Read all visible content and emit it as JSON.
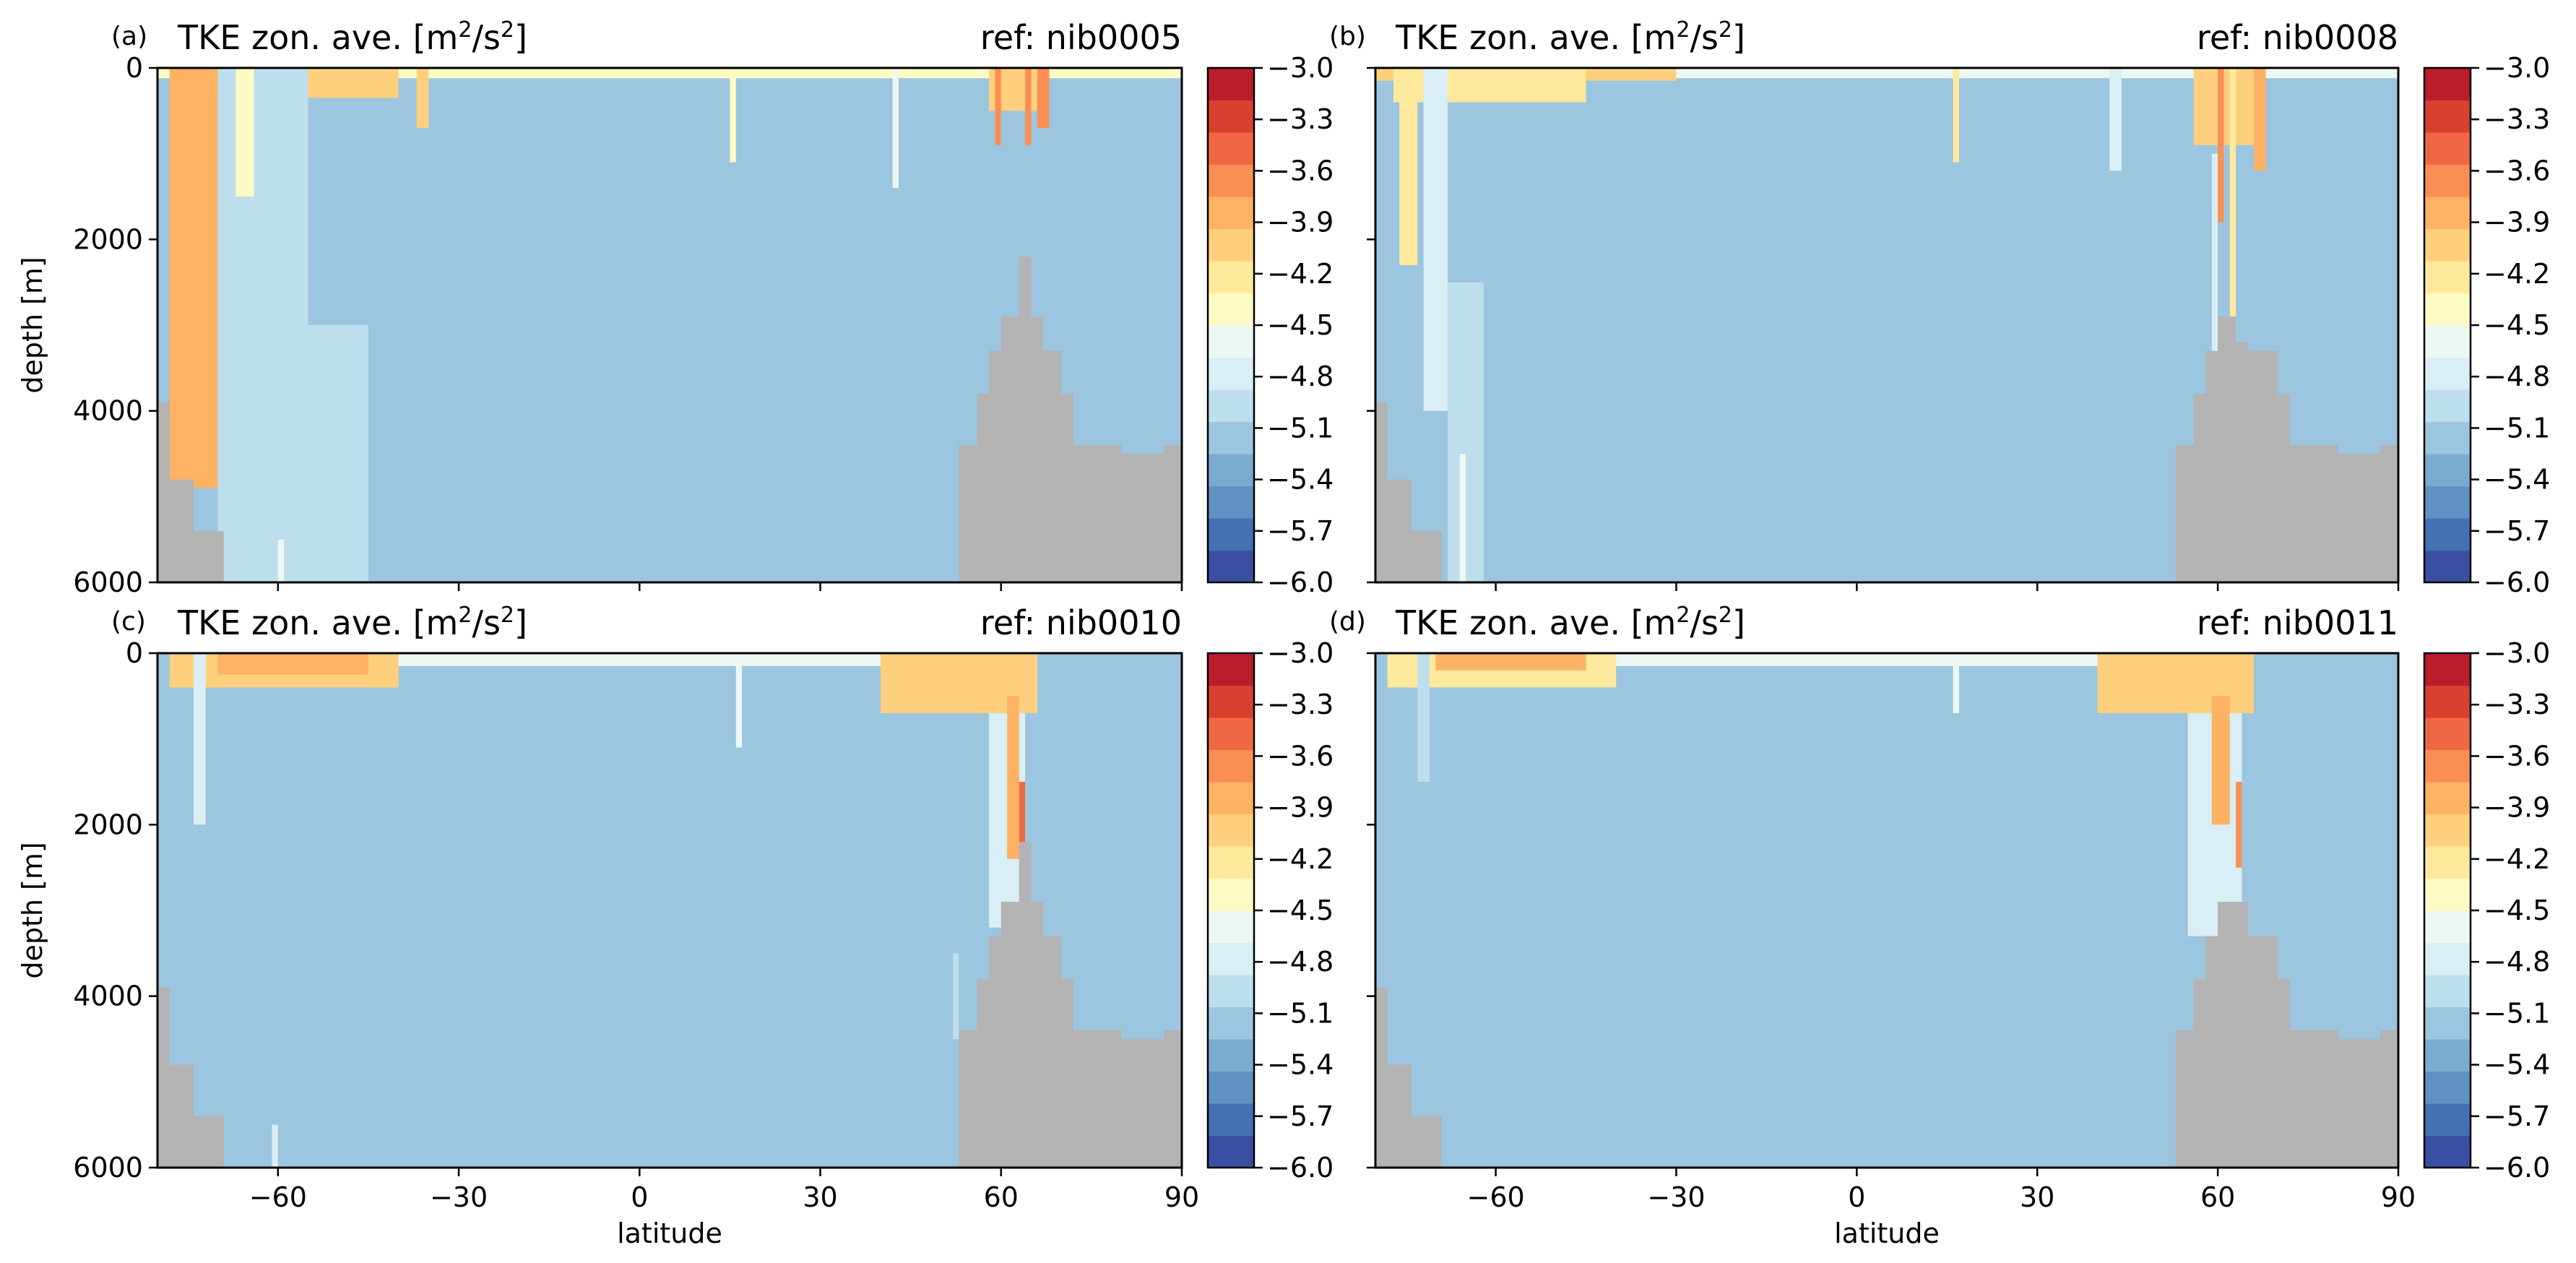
{
  "colors": {
    "land": "#b3b3b3",
    "background": "#8fbcd9",
    "palette": [
      "#3a4fa1",
      "#4470b4",
      "#5f91c2",
      "#7aabd0",
      "#9cc5df",
      "#bddeec",
      "#daeef5",
      "#eef8f3",
      "#fefcc4",
      "#fee99d",
      "#fed07e",
      "#fdb264",
      "#fa8f53",
      "#f06843",
      "#da4030",
      "#bb1d2b"
    ]
  },
  "chart_data": [
    {
      "type": "heatmap",
      "panel_label": "(a)",
      "title": "TKE zon. ave. [m²/s²]",
      "ref": "ref: nib0005",
      "xlabel": "",
      "ylabel": "depth [m]",
      "xlim": [
        -80,
        90
      ],
      "ylim": [
        6000,
        0
      ],
      "xticks": [
        -60,
        -30,
        0,
        30,
        60,
        90
      ],
      "yticks": [
        0,
        2000,
        4000,
        6000
      ],
      "show_xtick_labels": false,
      "colorbar": {
        "min": -6.0,
        "max": -3.0,
        "ticks": [
          "-3.0",
          "-3.3",
          "-3.6",
          "-3.9",
          "-4.2",
          "-4.5",
          "-4.8",
          "-5.1",
          "-5.4",
          "-5.7",
          "-6.0"
        ]
      },
      "background_level": -5.2,
      "land_polygon": [
        [
          -80,
          6000
        ],
        [
          -80,
          3900
        ],
        [
          -78,
          3900
        ],
        [
          -78,
          4800
        ],
        [
          -74,
          4800
        ],
        [
          -74,
          5400
        ],
        [
          -69,
          5400
        ],
        [
          -69,
          6000
        ],
        [
          53,
          6000
        ],
        [
          53,
          4400
        ],
        [
          56,
          4400
        ],
        [
          56,
          3800
        ],
        [
          58,
          3800
        ],
        [
          58,
          3300
        ],
        [
          60,
          3300
        ],
        [
          60,
          2900
        ],
        [
          63,
          2900
        ],
        [
          63,
          2200
        ],
        [
          65,
          2200
        ],
        [
          65,
          2900
        ],
        [
          67,
          2900
        ],
        [
          67,
          3300
        ],
        [
          70,
          3300
        ],
        [
          70,
          3800
        ],
        [
          72,
          3800
        ],
        [
          72,
          4400
        ],
        [
          76,
          4400
        ],
        [
          76,
          4400
        ],
        [
          80,
          4400
        ],
        [
          80,
          4500
        ],
        [
          87,
          4500
        ],
        [
          87,
          4400
        ],
        [
          90,
          4400
        ],
        [
          90,
          6000
        ]
      ],
      "bands": [
        {
          "x0": -80,
          "x1": -30,
          "d0": 0,
          "d1": 120,
          "v": -4.4
        },
        {
          "x0": -73,
          "x1": -40,
          "d0": 0,
          "d1": 350,
          "v": -4.1
        },
        {
          "x0": -30,
          "x1": 90,
          "d0": 0,
          "d1": 120,
          "v": -4.5
        },
        {
          "x0": -78,
          "x1": -70,
          "d0": 0,
          "d1": 4900,
          "v": -3.9
        },
        {
          "x0": -75,
          "x1": -71,
          "d0": 0,
          "d1": 2400,
          "v": -3.8
        },
        {
          "x0": -70,
          "x1": -64,
          "d0": 0,
          "d1": 6000,
          "v": -4.9
        },
        {
          "x0": -67,
          "x1": -63,
          "d0": 0,
          "d1": 1500,
          "v": -4.4
        },
        {
          "x0": -64,
          "x1": -55,
          "d0": 0,
          "d1": 6000,
          "v": -5.0
        },
        {
          "x0": -55,
          "x1": -45,
          "d0": 3000,
          "d1": 6000,
          "v": -5.0
        },
        {
          "x0": -60,
          "x1": -59,
          "d0": 5500,
          "d1": 6000,
          "v": -4.6
        },
        {
          "x0": -37,
          "x1": -35,
          "d0": 0,
          "d1": 700,
          "v": -4.0
        },
        {
          "x0": 15,
          "x1": 16,
          "d0": 0,
          "d1": 1100,
          "v": -4.4
        },
        {
          "x0": 42,
          "x1": 43,
          "d0": 0,
          "d1": 1400,
          "v": -4.6
        },
        {
          "x0": 58,
          "x1": 66,
          "d0": 0,
          "d1": 500,
          "v": -4.0
        },
        {
          "x0": 59,
          "x1": 60,
          "d0": 0,
          "d1": 900,
          "v": -3.7
        },
        {
          "x0": 64,
          "x1": 65,
          "d0": 0,
          "d1": 900,
          "v": -3.6
        },
        {
          "x0": 66,
          "x1": 68,
          "d0": 0,
          "d1": 700,
          "v": -3.7
        }
      ]
    },
    {
      "type": "heatmap",
      "panel_label": "(b)",
      "title": "TKE zon. ave. [m²/s²]",
      "ref": "ref: nib0008",
      "xlabel": "",
      "ylabel": "",
      "xlim": [
        -80,
        90
      ],
      "ylim": [
        6000,
        0
      ],
      "xticks": [
        -60,
        -30,
        0,
        30,
        60,
        90
      ],
      "yticks": [
        0,
        2000,
        4000,
        6000
      ],
      "show_xtick_labels": false,
      "colorbar": {
        "min": -6.0,
        "max": -3.0,
        "ticks": [
          "-3.0",
          "-3.3",
          "-3.6",
          "-3.9",
          "-4.2",
          "-4.5",
          "-4.8",
          "-5.1",
          "-5.4",
          "-5.7",
          "-6.0"
        ]
      },
      "background_level": -5.2,
      "land_polygon": [
        [
          -80,
          6000
        ],
        [
          -80,
          3900
        ],
        [
          -78,
          3900
        ],
        [
          -78,
          4800
        ],
        [
          -74,
          4800
        ],
        [
          -74,
          5400
        ],
        [
          -69,
          5400
        ],
        [
          -69,
          6000
        ],
        [
          53,
          6000
        ],
        [
          53,
          4400
        ],
        [
          56,
          4400
        ],
        [
          56,
          3800
        ],
        [
          58,
          3800
        ],
        [
          58,
          3300
        ],
        [
          60,
          3300
        ],
        [
          60,
          2900
        ],
        [
          63,
          2900
        ],
        [
          63,
          3200
        ],
        [
          65,
          3200
        ],
        [
          65,
          3300
        ],
        [
          67,
          3300
        ],
        [
          67,
          3300
        ],
        [
          70,
          3300
        ],
        [
          70,
          3800
        ],
        [
          72,
          3800
        ],
        [
          72,
          4400
        ],
        [
          76,
          4400
        ],
        [
          76,
          4400
        ],
        [
          80,
          4400
        ],
        [
          80,
          4500
        ],
        [
          87,
          4500
        ],
        [
          87,
          4400
        ],
        [
          90,
          4400
        ],
        [
          90,
          6000
        ]
      ],
      "bands": [
        {
          "x0": -80,
          "x1": -30,
          "d0": 0,
          "d1": 150,
          "v": -4.1
        },
        {
          "x0": -77,
          "x1": -45,
          "d0": 0,
          "d1": 400,
          "v": -4.3
        },
        {
          "x0": -30,
          "x1": 90,
          "d0": 0,
          "d1": 120,
          "v": -4.6
        },
        {
          "x0": -76,
          "x1": -73,
          "d0": 0,
          "d1": 2300,
          "v": -4.2
        },
        {
          "x0": -72,
          "x1": -68,
          "d0": 0,
          "d1": 4000,
          "v": -4.8
        },
        {
          "x0": -68,
          "x1": -62,
          "d0": 2500,
          "d1": 6000,
          "v": -5.0
        },
        {
          "x0": -66,
          "x1": -65,
          "d0": 4500,
          "d1": 6000,
          "v": -4.6
        },
        {
          "x0": 16,
          "x1": 17,
          "d0": 0,
          "d1": 1100,
          "v": -4.3
        },
        {
          "x0": 42,
          "x1": 44,
          "d0": 0,
          "d1": 1200,
          "v": -4.7
        },
        {
          "x0": 56,
          "x1": 66,
          "d0": 0,
          "d1": 900,
          "v": -4.1
        },
        {
          "x0": 60,
          "x1": 61,
          "d0": 0,
          "d1": 1800,
          "v": -3.6
        },
        {
          "x0": 62,
          "x1": 63,
          "d0": 0,
          "d1": 3200,
          "v": -4.3
        },
        {
          "x0": 59,
          "x1": 60,
          "d0": 1000,
          "d1": 3500,
          "v": -4.8
        },
        {
          "x0": 66,
          "x1": 68,
          "d0": 0,
          "d1": 1200,
          "v": -3.8
        }
      ]
    },
    {
      "type": "heatmap",
      "panel_label": "(c)",
      "title": "TKE zon. ave. [m²/s²]",
      "ref": "ref: nib0010",
      "xlabel": "latitude",
      "ylabel": "depth [m]",
      "xlim": [
        -80,
        90
      ],
      "ylim": [
        6000,
        0
      ],
      "xticks": [
        -60,
        -30,
        0,
        30,
        60,
        90
      ],
      "yticks": [
        0,
        2000,
        4000,
        6000
      ],
      "show_xtick_labels": true,
      "colorbar": {
        "min": -6.0,
        "max": -3.0,
        "ticks": [
          "-3.0",
          "-3.3",
          "-3.6",
          "-3.9",
          "-4.2",
          "-4.5",
          "-4.8",
          "-5.1",
          "-5.4",
          "-5.7",
          "-6.0"
        ]
      },
      "background_level": -5.2,
      "land_polygon": [
        [
          -80,
          6000
        ],
        [
          -80,
          3900
        ],
        [
          -78,
          3900
        ],
        [
          -78,
          4800
        ],
        [
          -74,
          4800
        ],
        [
          -74,
          5400
        ],
        [
          -69,
          5400
        ],
        [
          -69,
          6000
        ],
        [
          53,
          6000
        ],
        [
          53,
          4400
        ],
        [
          56,
          4400
        ],
        [
          56,
          3800
        ],
        [
          58,
          3800
        ],
        [
          58,
          3300
        ],
        [
          60,
          3300
        ],
        [
          60,
          2900
        ],
        [
          63,
          2900
        ],
        [
          63,
          2200
        ],
        [
          65,
          2200
        ],
        [
          65,
          2900
        ],
        [
          67,
          2900
        ],
        [
          67,
          3300
        ],
        [
          70,
          3300
        ],
        [
          70,
          3800
        ],
        [
          72,
          3800
        ],
        [
          72,
          4400
        ],
        [
          80,
          4400
        ],
        [
          80,
          4500
        ],
        [
          87,
          4500
        ],
        [
          87,
          4400
        ],
        [
          90,
          4400
        ],
        [
          90,
          6000
        ]
      ],
      "bands": [
        {
          "x0": -78,
          "x1": -40,
          "d0": 0,
          "d1": 400,
          "v": -4.1
        },
        {
          "x0": -70,
          "x1": -45,
          "d0": 0,
          "d1": 250,
          "v": -3.8
        },
        {
          "x0": -40,
          "x1": 40,
          "d0": 0,
          "d1": 150,
          "v": -4.6
        },
        {
          "x0": 40,
          "x1": 66,
          "d0": 0,
          "d1": 700,
          "v": -4.0
        },
        {
          "x0": 58,
          "x1": 64,
          "d0": 700,
          "d1": 3200,
          "v": -4.7
        },
        {
          "x0": 61,
          "x1": 63,
          "d0": 500,
          "d1": 2400,
          "v": -3.9
        },
        {
          "x0": 63,
          "x1": 64,
          "d0": 1500,
          "d1": 2400,
          "v": -3.5
        },
        {
          "x0": 16,
          "x1": 17,
          "d0": 0,
          "d1": 1100,
          "v": -4.6
        },
        {
          "x0": -74,
          "x1": -72,
          "d0": 0,
          "d1": 2000,
          "v": -4.8
        },
        {
          "x0": -61,
          "x1": -60,
          "d0": 5500,
          "d1": 6000,
          "v": -4.8
        },
        {
          "x0": 52,
          "x1": 53,
          "d0": 3500,
          "d1": 4500,
          "v": -4.9
        }
      ]
    },
    {
      "type": "heatmap",
      "panel_label": "(d)",
      "title": "TKE zon. ave. [m²/s²]",
      "ref": "ref: nib0011",
      "xlabel": "latitude",
      "ylabel": "",
      "xlim": [
        -80,
        90
      ],
      "ylim": [
        6000,
        0
      ],
      "xticks": [
        -60,
        -30,
        0,
        30,
        60,
        90
      ],
      "yticks": [
        0,
        2000,
        4000,
        6000
      ],
      "show_xtick_labels": true,
      "colorbar": {
        "min": -6.0,
        "max": -3.0,
        "ticks": [
          "-3.0",
          "-3.3",
          "-3.6",
          "-3.9",
          "-4.2",
          "-4.5",
          "-4.8",
          "-5.1",
          "-5.4",
          "-5.7",
          "-6.0"
        ]
      },
      "background_level": -5.2,
      "land_polygon": [
        [
          -80,
          6000
        ],
        [
          -80,
          3900
        ],
        [
          -78,
          3900
        ],
        [
          -78,
          4800
        ],
        [
          -74,
          4800
        ],
        [
          -74,
          5400
        ],
        [
          -69,
          5400
        ],
        [
          -69,
          6000
        ],
        [
          53,
          6000
        ],
        [
          53,
          4400
        ],
        [
          56,
          4400
        ],
        [
          56,
          3800
        ],
        [
          58,
          3800
        ],
        [
          58,
          3300
        ],
        [
          60,
          3300
        ],
        [
          60,
          2900
        ],
        [
          63,
          2900
        ],
        [
          63,
          2900
        ],
        [
          65,
          2900
        ],
        [
          65,
          3300
        ],
        [
          67,
          3300
        ],
        [
          70,
          3300
        ],
        [
          70,
          3800
        ],
        [
          72,
          3800
        ],
        [
          72,
          4400
        ],
        [
          80,
          4400
        ],
        [
          80,
          4500
        ],
        [
          87,
          4500
        ],
        [
          87,
          4400
        ],
        [
          90,
          4400
        ],
        [
          90,
          6000
        ]
      ],
      "bands": [
        {
          "x0": -78,
          "x1": -40,
          "d0": 0,
          "d1": 400,
          "v": -4.2
        },
        {
          "x0": -70,
          "x1": -45,
          "d0": 0,
          "d1": 200,
          "v": -3.9
        },
        {
          "x0": -40,
          "x1": 40,
          "d0": 0,
          "d1": 150,
          "v": -4.6
        },
        {
          "x0": 40,
          "x1": 66,
          "d0": 0,
          "d1": 700,
          "v": -4.1
        },
        {
          "x0": 55,
          "x1": 64,
          "d0": 700,
          "d1": 3300,
          "v": -4.8
        },
        {
          "x0": 59,
          "x1": 62,
          "d0": 500,
          "d1": 2000,
          "v": -3.9
        },
        {
          "x0": 63,
          "x1": 64,
          "d0": 1500,
          "d1": 2500,
          "v": -3.7
        },
        {
          "x0": 16,
          "x1": 17,
          "d0": 0,
          "d1": 700,
          "v": -4.6
        },
        {
          "x0": -73,
          "x1": -71,
          "d0": 0,
          "d1": 1500,
          "v": -4.9
        }
      ]
    }
  ]
}
